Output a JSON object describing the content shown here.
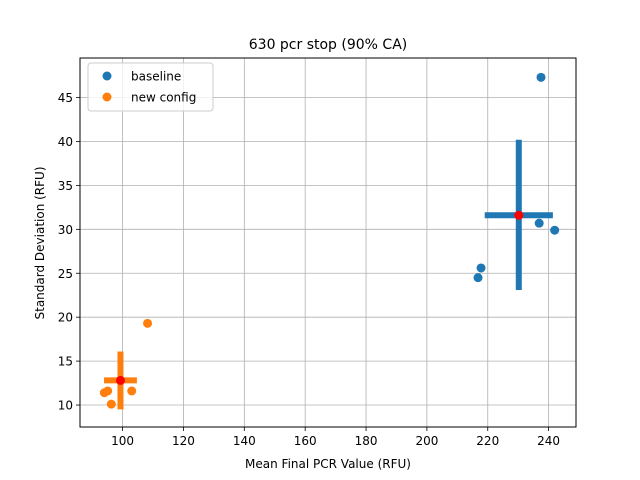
{
  "chart_data": {
    "type": "scatter",
    "title": "630 pcr stop (90% CA)",
    "xlabel": "Mean Final PCR Value (RFU)",
    "ylabel": "Standard Deviation (RFU)",
    "xlim": [
      86,
      249
    ],
    "ylim": [
      7.5,
      49.5
    ],
    "xticks": [
      100,
      120,
      140,
      160,
      180,
      200,
      220,
      240
    ],
    "yticks": [
      10,
      15,
      20,
      25,
      30,
      35,
      40,
      45
    ],
    "grid": true,
    "legend_position": "upper-left",
    "series": [
      {
        "name": "baseline",
        "color": "#1f77b4",
        "points": [
          {
            "x": 237.5,
            "y": 47.3
          },
          {
            "x": 236.9,
            "y": 30.7
          },
          {
            "x": 242.0,
            "y": 29.9
          },
          {
            "x": 217.8,
            "y": 25.6
          },
          {
            "x": 216.8,
            "y": 24.5
          }
        ],
        "mean": {
          "x": 230.2,
          "y": 31.6
        },
        "error_bar": {
          "x_range": [
            219.0,
            241.4
          ],
          "y_range": [
            23.1,
            40.2
          ]
        }
      },
      {
        "name": "new config",
        "color": "#ff7f0e",
        "points": [
          {
            "x": 108.2,
            "y": 19.3
          },
          {
            "x": 103.0,
            "y": 11.6
          },
          {
            "x": 95.1,
            "y": 11.6
          },
          {
            "x": 94.0,
            "y": 11.4
          },
          {
            "x": 96.3,
            "y": 10.1
          }
        ],
        "mean": {
          "x": 99.3,
          "y": 12.8
        },
        "error_bar": {
          "x_range": [
            93.9,
            104.7
          ],
          "y_range": [
            9.5,
            16.1
          ]
        }
      }
    ],
    "mean_marker_color": "#ff0000"
  }
}
